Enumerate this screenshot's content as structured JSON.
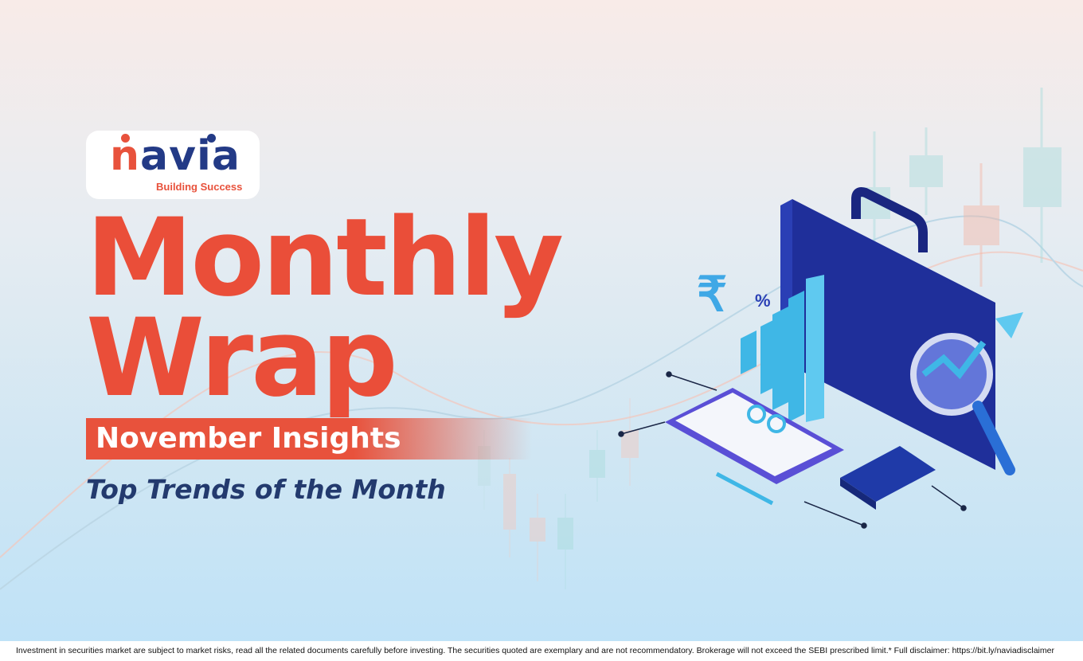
{
  "logo": {
    "wordmark": "navia",
    "tagline": "Building Success",
    "colors": {
      "orange": "#e8523c",
      "navy": "#233a86"
    }
  },
  "title_line1": "Monthly",
  "title_line2": "Wrap",
  "ribbon": "November Insights",
  "subtitle": "Top Trends of the Month",
  "footer": "Investment in securities market are subject to market risks, read all the related documents carefully before investing. The securities quoted are exemplary and are not recommendatory. Brokerage will not exceed the SEBI prescribed limit.* Full disclaimer: https://bit.ly/naviadisclaimer",
  "illustration": {
    "icons": [
      "briefcase-icon",
      "rupee-icon",
      "percent-icon",
      "bar-chart-icon",
      "magnifier-icon",
      "clipboard-icon",
      "calculator-icon",
      "pencil-icon",
      "arrow-up-icon"
    ]
  },
  "colors": {
    "accent": "#ea4e39",
    "navy": "#233a6e"
  }
}
